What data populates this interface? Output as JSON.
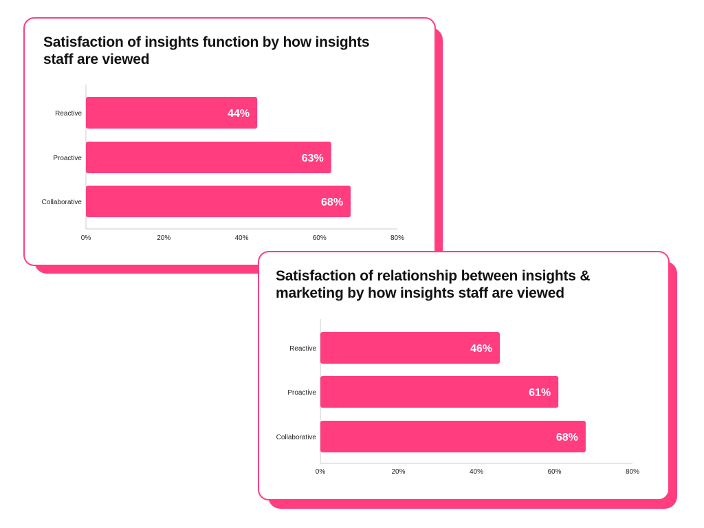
{
  "colors": {
    "accent": "#ff3d7f",
    "text": "#111111",
    "axis": "#cccccc"
  },
  "charts": [
    {
      "title": "Satisfaction of insights function by how insights staff are viewed"
    },
    {
      "title": "Satisfaction of relationship between insights & marketing by how insights staff are viewed"
    }
  ],
  "chart_data": [
    {
      "type": "bar",
      "orientation": "horizontal",
      "title": "Satisfaction of insights function by how insights staff are viewed",
      "categories": [
        "Reactive",
        "Proactive",
        "Collaborative"
      ],
      "values": [
        44,
        63,
        68
      ],
      "value_labels": [
        "44%",
        "63%",
        "68%"
      ],
      "xticks": [
        "0%",
        "20%",
        "40%",
        "60%",
        "80%"
      ],
      "xlim": [
        0,
        80
      ],
      "grid": false,
      "color": "#ff3d7f"
    },
    {
      "type": "bar",
      "orientation": "horizontal",
      "title": "Satisfaction of relationship between insights & marketing by how insights staff are viewed",
      "categories": [
        "Reactive",
        "Proactive",
        "Collaborative"
      ],
      "values": [
        46,
        61,
        68
      ],
      "value_labels": [
        "46%",
        "61%",
        "68%"
      ],
      "xticks": [
        "0%",
        "20%",
        "40%",
        "60%",
        "80%"
      ],
      "xlim": [
        0,
        80
      ],
      "grid": false,
      "color": "#ff3d7f"
    }
  ]
}
